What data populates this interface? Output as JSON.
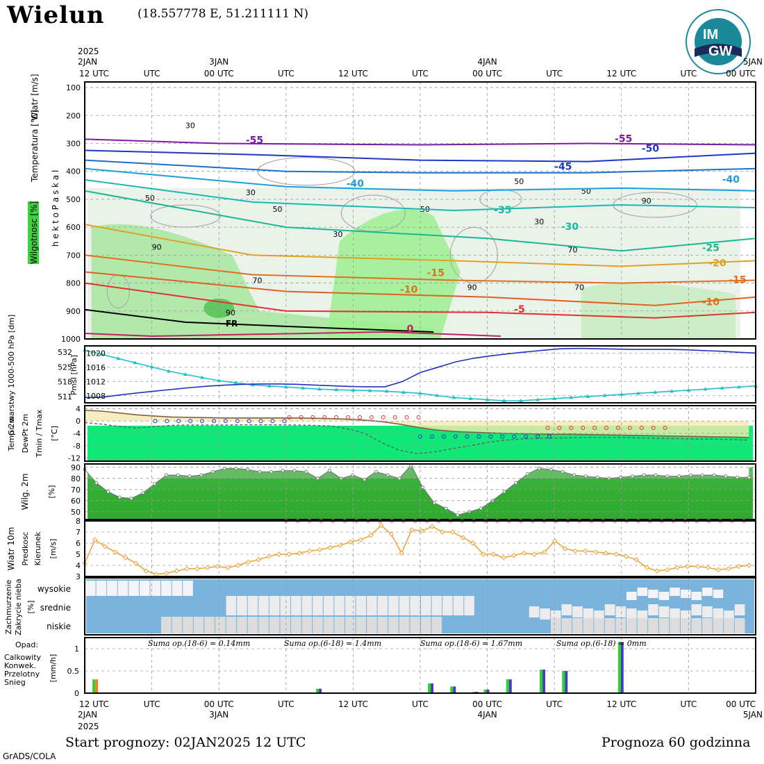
{
  "header": {
    "station": "Wielun",
    "coords": "(18.557778 E, 51.211111 N)",
    "logo_text": "IMGW",
    "logo_top": "IM",
    "logo_bottom": "GW"
  },
  "time_axis": {
    "top_labels": [
      "12 UTC",
      "UTC",
      "00 UTC",
      "UTC",
      "12 UTC",
      "UTC",
      "00 UTC",
      "UTC",
      "12 UTC",
      "UTC",
      "00 UTC"
    ],
    "top_dates": [
      "2025",
      "2JAN",
      "3JAN",
      "4JAN",
      "5JAN"
    ],
    "bottom_labels": [
      "12 UTC",
      "UTC",
      "00 UTC",
      "UTC",
      "12 UTC",
      "UTC",
      "00 UTC",
      "UTC",
      "12 UTC",
      "UTC",
      "00 UTC"
    ],
    "bottom_dates": [
      "2JAN",
      "2025",
      "3JAN",
      "4JAN",
      "5JAN"
    ]
  },
  "chart_data": [
    {
      "type": "line",
      "panel": "upper-air",
      "ylabel": "h e k t o P a s k a l",
      "y_ticks": [
        100,
        200,
        300,
        400,
        500,
        600,
        700,
        800,
        900,
        1000
      ],
      "ylim": [
        1000,
        80
      ],
      "side_labels": [
        "Wiatr [m/s]",
        "Temperatura [°C]",
        "Wilgotnosc [%]"
      ],
      "isotherm_labels": [
        {
          "text": "-55",
          "color": "#7a1aa8",
          "t": 0.24,
          "p": 300
        },
        {
          "text": "-55",
          "color": "#7a1aa8",
          "t": 0.79,
          "p": 295
        },
        {
          "text": "-50",
          "color": "#2036c8",
          "t": 0.83,
          "p": 330
        },
        {
          "text": "-45",
          "color": "#2036c8",
          "t": 0.7,
          "p": 395
        },
        {
          "text": "-40",
          "color": "#1aa0d8",
          "t": 0.39,
          "p": 455
        },
        {
          "text": "-40",
          "color": "#1aa0d8",
          "t": 0.95,
          "p": 440
        },
        {
          "text": "-35",
          "color": "#1ab8a8",
          "t": 0.61,
          "p": 550
        },
        {
          "text": "-30",
          "color": "#1ab8a0",
          "t": 0.71,
          "p": 610
        },
        {
          "text": "-25",
          "color": "#18b890",
          "t": 0.92,
          "p": 685
        },
        {
          "text": "-20",
          "color": "#e0a020",
          "t": 0.93,
          "p": 740
        },
        {
          "text": "-15",
          "color": "#e07020",
          "t": 0.51,
          "p": 775
        },
        {
          "text": "-15",
          "color": "#e07020",
          "t": 0.96,
          "p": 800
        },
        {
          "text": "-10",
          "color": "#e07020",
          "t": 0.47,
          "p": 835
        },
        {
          "text": "-10",
          "color": "#e07020",
          "t": 0.92,
          "p": 880
        },
        {
          "text": "-5",
          "color": "#e03030",
          "t": 0.64,
          "p": 905
        },
        {
          "text": "0",
          "color": "#c02060",
          "t": 0.48,
          "p": 975
        }
      ],
      "humidity_labels": [
        "30",
        "50",
        "30",
        "50",
        "70",
        "90",
        "90",
        "90",
        "50",
        "70",
        "30",
        "50",
        "50",
        "90",
        "30",
        "70"
      ],
      "fr_label": "FR"
    },
    {
      "type": "line",
      "panel": "pressure",
      "left_axis": {
        "label": "Gr. warstwy 1000-500 hPa [dm]",
        "ticks": [
          511,
          518,
          525,
          532
        ],
        "ylim": [
          508,
          535
        ]
      },
      "right_axis": {
        "label": "Pmsl [hPa]",
        "ticks": [
          1008,
          1012,
          1016,
          1020
        ],
        "ylim": [
          1006,
          1022
        ]
      },
      "series": [
        {
          "name": "Gr. warstwy",
          "color": "#20c0c8",
          "values": [
            533,
            531,
            529,
            527,
            525,
            523,
            521.5,
            520,
            518.5,
            517.5,
            516.5,
            516,
            515.5,
            515,
            514.5,
            514.2,
            514,
            513.8,
            513.5,
            513,
            512.5,
            511.5,
            510.5,
            510,
            509.5,
            509,
            509,
            509.5,
            510,
            510.5,
            511,
            511.5,
            512,
            512.5,
            513,
            513.5,
            514,
            514.5,
            515,
            515.5,
            516
          ]
        },
        {
          "name": "Pmsl",
          "color": "#2030c0",
          "values": [
            1007.5,
            1007.6,
            1008.2,
            1008.8,
            1009.3,
            1009.8,
            1010.3,
            1010.7,
            1011,
            1011.2,
            1011.3,
            1011.3,
            1011.2,
            1011,
            1010.8,
            1010.6,
            1010.5,
            1010.5,
            1012,
            1014.5,
            1016,
            1017.5,
            1018.5,
            1019.2,
            1019.8,
            1020.3,
            1020.8,
            1021.2,
            1021.3,
            1021.2,
            1021.1,
            1021,
            1021,
            1021,
            1020.9,
            1020.7,
            1020.5,
            1020.2,
            1020
          ]
        }
      ]
    },
    {
      "type": "area",
      "panel": "temperature",
      "ylabel_lines": [
        "Temp 2m",
        "DewPt 2m",
        "Tmin / Tmax"
      ],
      "unit": "[°C]",
      "ticks": [
        -12,
        -8,
        -4,
        0,
        4
      ],
      "ylim": [
        -13,
        5
      ],
      "series": [
        {
          "name": "Temp 2m",
          "color": "#806040",
          "values": [
            3.5,
            3.2,
            2.6,
            2,
            1.6,
            1.3,
            1.2,
            1.1,
            1,
            1,
            1,
            1,
            1,
            0.9,
            0.8,
            0.6,
            0.3,
            -0.2,
            -1,
            -2,
            -2.8,
            -3.3,
            -3.6,
            -3.8,
            -4,
            -4.1,
            -4.2,
            -4.3,
            -4.3,
            -4.4,
            -4.5,
            -4.6,
            -4.7,
            -4.8,
            -4.9,
            -5,
            -5.1,
            -5.2,
            -5.3
          ]
        },
        {
          "name": "DewPt 2m",
          "color": "#606060",
          "values": [
            -0.5,
            -1,
            -1.8,
            -2.3,
            -1.8,
            -1.4,
            -1.3,
            -1.3,
            -1.3,
            -1.2,
            -1.2,
            -1.2,
            -1.3,
            -1.4,
            -1.6,
            -2.5,
            -4,
            -7,
            -9.5,
            -10.5,
            -10,
            -9,
            -8,
            -7,
            -6.2,
            -5.8,
            -5.6,
            -5.5,
            -5.4,
            -5.3,
            -5.3,
            -5.4,
            -5.5,
            -5.6,
            -5.7,
            -5.8,
            -5.9,
            -6,
            -6.2
          ]
        },
        {
          "name": "Tmax",
          "color": "#e03030",
          "values": [
            1.2,
            1.2,
            1.2,
            1.2,
            1.2,
            1.2,
            1.2,
            1.2,
            1.2,
            1.2,
            1.2,
            1.2,
            -2.2,
            -2.2,
            -2.2,
            -2.2,
            -2.2,
            -2.2,
            -2.2,
            -2.2,
            -2.2,
            -2.2,
            -2.2
          ]
        },
        {
          "name": "Tmin",
          "color": "#2030d0",
          "values": [
            0,
            0,
            0,
            0,
            0,
            0,
            0,
            0,
            0,
            0,
            0,
            0,
            -5,
            -5,
            -5,
            -5,
            -5,
            -5,
            -5,
            -5,
            -5,
            -5,
            -5,
            -5
          ]
        }
      ]
    },
    {
      "type": "area",
      "panel": "humidity",
      "ylabel": "Wilg. 2m",
      "unit": "[%]",
      "ticks": [
        50,
        60,
        70,
        80,
        90
      ],
      "ylim": [
        43,
        93
      ],
      "series": [
        {
          "name": "Wilg. 2m",
          "color": "#10a010",
          "values": [
            88,
            76,
            68,
            63,
            62,
            67,
            75,
            83,
            83,
            82,
            83,
            86,
            89,
            89,
            88,
            86,
            86,
            87,
            87,
            86,
            80,
            87,
            80,
            83,
            79,
            86,
            83,
            80,
            92,
            72,
            58,
            53,
            47,
            50,
            53,
            60,
            68,
            76,
            84,
            89,
            88,
            86,
            83,
            82,
            81,
            80,
            81,
            82,
            83,
            83,
            82,
            82,
            83,
            83,
            83,
            82,
            81,
            81
          ]
        }
      ]
    },
    {
      "type": "line",
      "panel": "wind",
      "ylabel_lines": [
        "Wiatr 10m",
        "Predkosc",
        "Kierunek"
      ],
      "unit": "[m/s]",
      "ticks": [
        3,
        4,
        5,
        6,
        7,
        8
      ],
      "ylim": [
        3,
        8
      ],
      "series": [
        {
          "name": "Predkosc",
          "color": "#f0a030",
          "values": [
            4.2,
            6.3,
            5.7,
            5.2,
            4.7,
            4.2,
            3.5,
            3.2,
            3.3,
            3.5,
            3.7,
            3.7,
            3.8,
            3.9,
            3.8,
            4,
            4.3,
            4.5,
            4.8,
            5,
            5,
            5.1,
            5.3,
            5.4,
            5.6,
            5.8,
            6.1,
            6.3,
            6.7,
            7.6,
            6.8,
            5.1,
            7.2,
            7.1,
            7.5,
            7,
            7,
            6.5,
            6,
            5,
            5,
            4.7,
            4.9,
            5.1,
            5,
            5.2,
            6.2,
            5.5,
            5.3,
            5.3,
            5.2,
            5.1,
            5,
            4.8,
            4.5,
            3.8,
            3.5,
            3.6,
            3.8,
            3.9,
            3.9,
            3.8,
            3.6,
            3.7,
            3.9,
            4
          ]
        }
      ]
    },
    {
      "type": "bar",
      "panel": "clouds",
      "ylabel_lines": [
        "Zachmurzenie",
        "Zakrycie nieba"
      ],
      "unit": "[%]",
      "level_labels": [
        "wysokie",
        "srednie",
        "niskie"
      ]
    },
    {
      "type": "bar",
      "panel": "precipitation",
      "ylabel": "[mm/h]",
      "ticks": [
        0,
        0.5,
        1
      ],
      "ylim": [
        0,
        1.25
      ],
      "legend_title": "Opad:",
      "legend": [
        {
          "name": "Calkowity",
          "color": "#30d030"
        },
        {
          "name": "Konwek.",
          "color": "#e03060"
        },
        {
          "name": "Przelotny",
          "color": "#f08020"
        },
        {
          "name": "Snieg",
          "color": "#4040c0"
        }
      ],
      "sums": [
        "Suma op.(18-6) = 0.14mm",
        "Suma op.(6-18) = 1.4mm",
        "Suma op.(18-6) = 1.67mm",
        "Suma op.(6-18) = 0mm"
      ],
      "x": [
        1,
        19,
        21,
        31,
        33,
        35,
        36,
        38,
        41,
        43,
        48,
        49
      ],
      "values": [
        0.31,
        0.01,
        0.1,
        0.22,
        0.15,
        0.03,
        0.08,
        0.31,
        0.53,
        0.5,
        1.15,
        0.01
      ]
    }
  ],
  "footer": {
    "start": "Start prognozy: 02JAN2025 12 UTC",
    "range": "Prognoza 60 godzinna",
    "credit": "GrADS/COLA"
  }
}
